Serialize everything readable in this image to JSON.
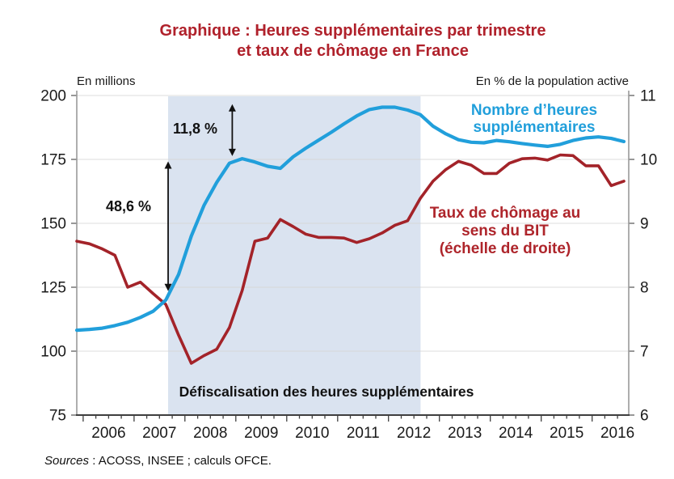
{
  "title": {
    "line1": "Graphique : Heures supplémentaires par trimestre",
    "line2": "et taux de chômage en France"
  },
  "axes": {
    "left_title": "En millions",
    "right_title": "En % de la population active",
    "left_ticks": [
      200,
      175,
      150,
      125,
      100,
      75
    ],
    "right_ticks": [
      11,
      10,
      9,
      8,
      7,
      6
    ],
    "left_range": [
      75,
      200
    ],
    "right_range": [
      6,
      11
    ],
    "x_ticks": [
      2006,
      2007,
      2008,
      2009,
      2010,
      2011,
      2012,
      2013,
      2014,
      2015,
      2016
    ],
    "x_range": [
      2005.875,
      2016.72
    ]
  },
  "chart_data": {
    "type": "line",
    "title": "Graphique : Heures supplémentaires par trimestre et taux de chômage en France",
    "grid": true,
    "x": [
      2005.875,
      2006.125,
      2006.375,
      2006.625,
      2006.875,
      2007.125,
      2007.375,
      2007.625,
      2007.875,
      2008.125,
      2008.375,
      2008.625,
      2008.875,
      2009.125,
      2009.375,
      2009.625,
      2009.875,
      2010.125,
      2010.375,
      2010.625,
      2010.875,
      2011.125,
      2011.375,
      2011.625,
      2011.875,
      2012.125,
      2012.375,
      2012.625,
      2012.875,
      2013.125,
      2013.375,
      2013.625,
      2013.875,
      2014.125,
      2014.375,
      2014.625,
      2014.875,
      2015.125,
      2015.375,
      2015.625,
      2015.875,
      2016.125,
      2016.375,
      2016.625
    ],
    "series": [
      {
        "name": "Nombre d’heures supplémentaires",
        "axis": "left",
        "color": "#219fdb",
        "values": [
          108.2,
          108.5,
          109,
          110,
          111.3,
          113.2,
          115.6,
          120,
          130,
          145,
          157,
          166,
          173.5,
          175.3,
          174,
          172.3,
          171.5,
          176,
          179.4,
          182.5,
          185.6,
          188.9,
          192,
          194.5,
          195.4,
          195.4,
          194.3,
          192.5,
          188,
          185,
          182.7,
          181.7,
          181.5,
          182.4,
          181.9,
          181.2,
          180.6,
          180.1,
          180.9,
          182.4,
          183.4,
          183.8,
          183.2,
          182
        ]
      },
      {
        "name": "Taux de chômage au sens du BIT",
        "axis": "right",
        "color": "#a32329",
        "values": [
          8.72,
          8.68,
          8.6,
          8.5,
          8.0,
          8.08,
          7.9,
          7.73,
          7.25,
          6.81,
          6.93,
          7.03,
          7.37,
          7.95,
          8.72,
          8.77,
          9.06,
          8.95,
          8.83,
          8.78,
          8.78,
          8.77,
          8.7,
          8.76,
          8.85,
          8.97,
          9.04,
          9.39,
          9.66,
          9.84,
          9.97,
          9.91,
          9.78,
          9.78,
          9.94,
          10.01,
          10.02,
          9.99,
          10.07,
          10.06,
          9.9,
          9.9,
          9.59,
          9.66
        ]
      }
    ],
    "shaded_region": {
      "from": 2007.67,
      "to": 2012.63,
      "color": "#dae3f0",
      "label": "Défiscalisation des heures supplémentaires"
    },
    "annotations": [
      {
        "label": "11,8 %",
        "t": 2008.93,
        "value_from": 196.6,
        "value_to": 176.3
      },
      {
        "label": "48,6 %",
        "t": 2007.67,
        "value_from": 174.2,
        "value_to": 123.5
      }
    ]
  },
  "labels": {
    "blue_legend": [
      "Nombre d’heures",
      "supplémentaires"
    ],
    "red_legend": [
      "Taux de chômage au",
      "sens du BIT",
      "(échelle de droite)"
    ]
  },
  "source": {
    "prefix": "Sources",
    "rest": " : ACOSS, INSEE ; calculs OFCE."
  }
}
